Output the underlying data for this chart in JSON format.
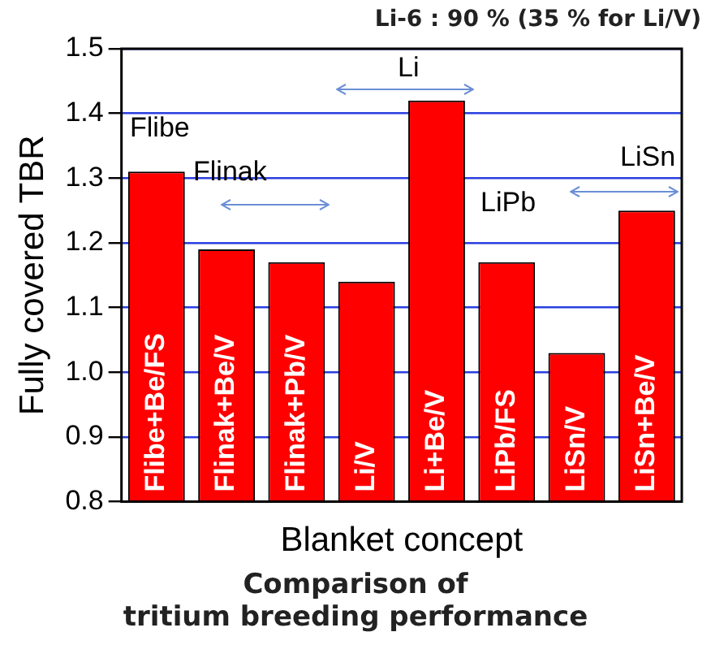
{
  "chart_data": {
    "type": "bar",
    "xlabel": "Blanket concept",
    "ylabel": "Fully covered TBR",
    "categories": [
      "Flibe+Be/FS",
      "Flinak+Be/V",
      "Flinak+Pb/V",
      "Li/V",
      "Li+Be/V",
      "LiPb/FS",
      "LiSn/V",
      "LiSn+Be/V"
    ],
    "values": [
      1.31,
      1.19,
      1.17,
      1.14,
      1.42,
      1.17,
      1.03,
      1.25
    ],
    "color": "#ff0000",
    "ylim": [
      0.8,
      1.5
    ],
    "yticks": [
      {
        "value": 0.8,
        "label": "0.8"
      },
      {
        "value": 0.9,
        "label": "0.9"
      },
      {
        "value": 1.0,
        "label": "1.0"
      },
      {
        "value": 1.1,
        "label": "1.1"
      },
      {
        "value": 1.2,
        "label": "1.2"
      },
      {
        "value": 1.3,
        "label": "1.3"
      },
      {
        "value": 1.4,
        "label": "1.4"
      },
      {
        "value": 1.5,
        "label": "1.5"
      }
    ],
    "grid": "y",
    "tick_labels": "y",
    "annotations": [
      "Li-6 : 90 % (35 % for Li/V)",
      "Flibe",
      "Flinak",
      "Li",
      "LiPb",
      "LiSn",
      "Comparison of\ntritium breeding performance"
    ]
  }
}
